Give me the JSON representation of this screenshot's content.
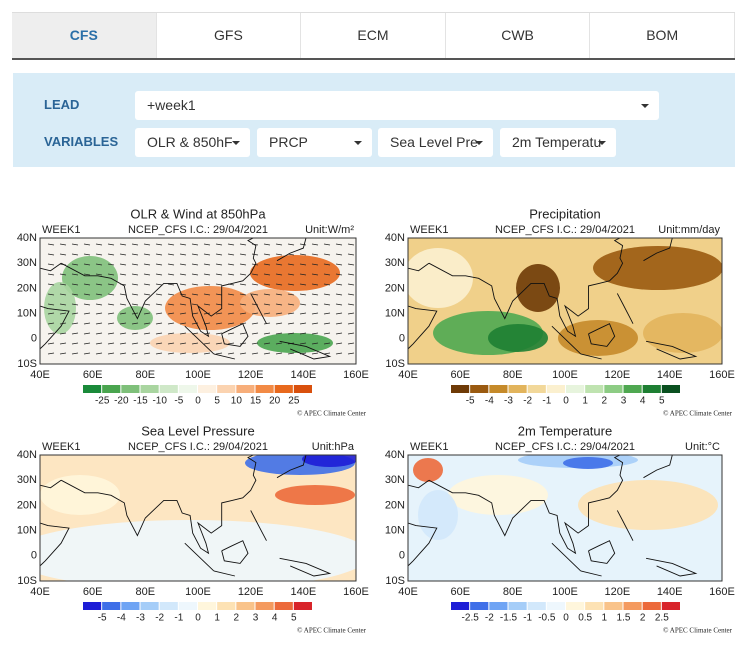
{
  "tabs": [
    "CFS",
    "GFS",
    "ECM",
    "CWB",
    "BOM"
  ],
  "active_tab": 0,
  "form": {
    "lead_label": "LEAD",
    "lead_value": "+week1",
    "variables_label": "VARIABLES",
    "variables": [
      "OLR & 850hF",
      "PRCP",
      "Sea Level Pre",
      "2m Temperatu"
    ]
  },
  "maps": [
    {
      "title": "OLR & Wind at 850hPa",
      "week": "WEEK1",
      "subtitle": "NCEP_CFS I.C.: 29/04/2021",
      "unit": "Unit:W/m²",
      "lat_labels": [
        "40N",
        "30N",
        "20N",
        "10N",
        "0",
        "10S"
      ],
      "lon_labels": [
        "40E",
        "60E",
        "80E",
        "100E",
        "120E",
        "140E",
        "160E"
      ],
      "colorbar_labels": [
        "-25",
        "-20",
        "-15",
        "-10",
        "-5",
        "0",
        "5",
        "10",
        "15",
        "20",
        "25"
      ],
      "colors": [
        "#1a8a3a",
        "#4aa54f",
        "#7fc07a",
        "#a9d5a0",
        "#cfe8c8",
        "#eef7ea",
        "#fdf0e0",
        "#fbd3b0",
        "#f7ae7a",
        "#f28a45",
        "#e8691d",
        "#d9500d"
      ],
      "credit": "© APEC Climate Center"
    },
    {
      "title": "Precipitation",
      "week": "WEEK1",
      "subtitle": "NCEP_CFS I.C.: 29/04/2021",
      "unit": "Unit:mm/day",
      "lat_labels": [
        "40N",
        "30N",
        "20N",
        "10N",
        "0",
        "10S"
      ],
      "lon_labels": [
        "40E",
        "60E",
        "80E",
        "100E",
        "120E",
        "140E",
        "160E"
      ],
      "colorbar_labels": [
        "-5",
        "-4",
        "-3",
        "-2",
        "-1",
        "0",
        "1",
        "2",
        "3",
        "4",
        "5"
      ],
      "colors": [
        "#6e3a06",
        "#9a5a10",
        "#c58a2a",
        "#e2b45c",
        "#f2d89a",
        "#fbf0cf",
        "#e7f4dd",
        "#bfe3b0",
        "#8dcc84",
        "#4fa851",
        "#1e7f33",
        "#0a5020"
      ],
      "credit": "© APEC Climate Center"
    },
    {
      "title": "Sea Level Pressure",
      "week": "WEEK1",
      "subtitle": "NCEP_CFS I.C.: 29/04/2021",
      "unit": "Unit:hPa",
      "lat_labels": [
        "40N",
        "30N",
        "20N",
        "10N",
        "0",
        "10S"
      ],
      "lon_labels": [
        "40E",
        "60E",
        "80E",
        "100E",
        "120E",
        "140E",
        "160E"
      ],
      "colorbar_labels": [
        "-5",
        "-4",
        "-3",
        "-2",
        "-1",
        "0",
        "1",
        "2",
        "3",
        "4",
        "5"
      ],
      "colors": [
        "#1d1dd6",
        "#3f6fe8",
        "#6fa4f4",
        "#a5cdf8",
        "#d2e8fb",
        "#eef7fd",
        "#fff6dc",
        "#fde2b4",
        "#f9c38a",
        "#f49a5f",
        "#ec6a3b",
        "#d8242a"
      ],
      "credit": "© APEC Climate Center"
    },
    {
      "title": "2m Temperature",
      "week": "WEEK1",
      "subtitle": "NCEP_CFS I.C.: 29/04/2021",
      "unit": "Unit:°C",
      "lat_labels": [
        "40N",
        "30N",
        "20N",
        "10N",
        "0",
        "10S"
      ],
      "lon_labels": [
        "40E",
        "60E",
        "80E",
        "100E",
        "120E",
        "140E",
        "160E"
      ],
      "colorbar_labels": [
        "-2.5",
        "-2",
        "-1.5",
        "-1",
        "-0.5",
        "0",
        "0.5",
        "1",
        "1.5",
        "2",
        "2.5"
      ],
      "colors": [
        "#1d1dd6",
        "#3f6fe8",
        "#6fa4f4",
        "#a5cdf8",
        "#d2e8fb",
        "#eef7fd",
        "#fff6dc",
        "#fde2b4",
        "#f9c38a",
        "#f49a5f",
        "#ec6a3b",
        "#d8242a"
      ],
      "credit": "© APEC Climate Center"
    }
  ]
}
